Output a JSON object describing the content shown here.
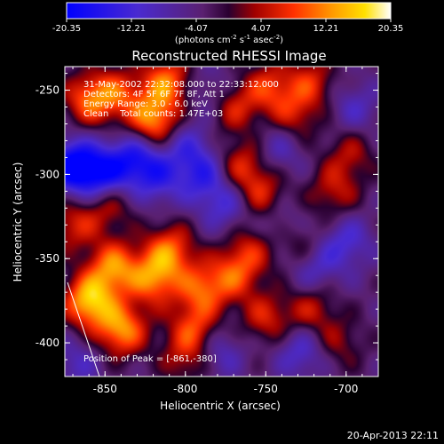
{
  "colorbar": {
    "tick_labels": [
      "-20.35",
      "-12.21",
      "-4.07",
      "4.07",
      "12.21",
      "20.35"
    ],
    "range": [
      -20.35,
      20.35
    ],
    "units_parts": [
      "(photons cm",
      "-2",
      " s",
      "-1",
      " asec",
      "-2",
      ")"
    ]
  },
  "chart_data": {
    "type": "heatmap",
    "title": "Reconstructed RHESSI Image",
    "xlabel": "Heliocentric X (arcsec)",
    "ylabel": "Heliocentric Y (arcsec)",
    "xlim": [
      -875,
      -680
    ],
    "ylim": [
      -420,
      -236
    ],
    "x_ticks": [
      -850,
      -800,
      -750,
      -700
    ],
    "y_ticks": [
      -250,
      -300,
      -350,
      -400
    ],
    "annotations": [
      "31-May-2002 22:32:08.000 to 22:33:12.000",
      "Detectors: 4F 5F 6F 7F 8F, Att 1",
      "Energy Range: 3.0 - 6.0 keV",
      "Clean    Total counts: 1.47E+03"
    ],
    "peak_label": "Position of Peak = [-861,-380]",
    "peak": [
      -861,
      -380
    ],
    "intensity_range": [
      -20.35,
      20.35
    ],
    "colormap": "blue-purple-red-orange-yellow-white",
    "blobs": [
      {
        "x": -860,
        "y": -375,
        "v": 19
      },
      {
        "x": -840,
        "y": -392,
        "v": 16
      },
      {
        "x": -845,
        "y": -355,
        "v": 15
      },
      {
        "x": -820,
        "y": -362,
        "v": 14
      },
      {
        "x": -810,
        "y": -345,
        "v": 13
      },
      {
        "x": -790,
        "y": -368,
        "v": 12
      },
      {
        "x": -795,
        "y": -392,
        "v": 11
      },
      {
        "x": -770,
        "y": -360,
        "v": 10
      },
      {
        "x": -750,
        "y": -385,
        "v": 9
      },
      {
        "x": -760,
        "y": -345,
        "v": 8
      },
      {
        "x": -730,
        "y": -340,
        "v": 7
      },
      {
        "x": -820,
        "y": -268,
        "v": 16
      },
      {
        "x": -812,
        "y": -245,
        "v": 14
      },
      {
        "x": -860,
        "y": -255,
        "v": 13
      },
      {
        "x": -842,
        "y": -252,
        "v": 10
      },
      {
        "x": -770,
        "y": -260,
        "v": 9
      },
      {
        "x": -748,
        "y": -248,
        "v": 10
      },
      {
        "x": -732,
        "y": -265,
        "v": 8
      },
      {
        "x": -722,
        "y": -245,
        "v": 9
      },
      {
        "x": -765,
        "y": -295,
        "v": 10
      },
      {
        "x": -752,
        "y": -312,
        "v": 9
      },
      {
        "x": -708,
        "y": -310,
        "v": 8
      },
      {
        "x": -698,
        "y": -288,
        "v": 7
      },
      {
        "x": -722,
        "y": -380,
        "v": 8
      },
      {
        "x": -705,
        "y": -400,
        "v": 6
      },
      {
        "x": -848,
        "y": -318,
        "v": 8
      },
      {
        "x": -870,
        "y": -330,
        "v": 9
      },
      {
        "x": -800,
        "y": -410,
        "v": 7
      },
      {
        "x": -870,
        "y": -295,
        "v": -18
      },
      {
        "x": -852,
        "y": -300,
        "v": -14
      },
      {
        "x": -832,
        "y": -290,
        "v": -12
      },
      {
        "x": -818,
        "y": -302,
        "v": -9
      },
      {
        "x": -790,
        "y": -300,
        "v": -10
      },
      {
        "x": -800,
        "y": -282,
        "v": -7
      },
      {
        "x": -775,
        "y": -318,
        "v": -8
      },
      {
        "x": -780,
        "y": -405,
        "v": -7
      },
      {
        "x": -728,
        "y": -405,
        "v": -8
      },
      {
        "x": -720,
        "y": -355,
        "v": -7
      },
      {
        "x": -740,
        "y": -330,
        "v": -6
      },
      {
        "x": -695,
        "y": -260,
        "v": -6
      },
      {
        "x": -700,
        "y": -340,
        "v": -8
      },
      {
        "x": -868,
        "y": -412,
        "v": -6
      },
      {
        "x": -785,
        "y": -250,
        "v": -5
      },
      {
        "x": -742,
        "y": -285,
        "v": -6
      }
    ]
  },
  "footer": {
    "timestamp": "20-Apr-2013 22:11"
  }
}
